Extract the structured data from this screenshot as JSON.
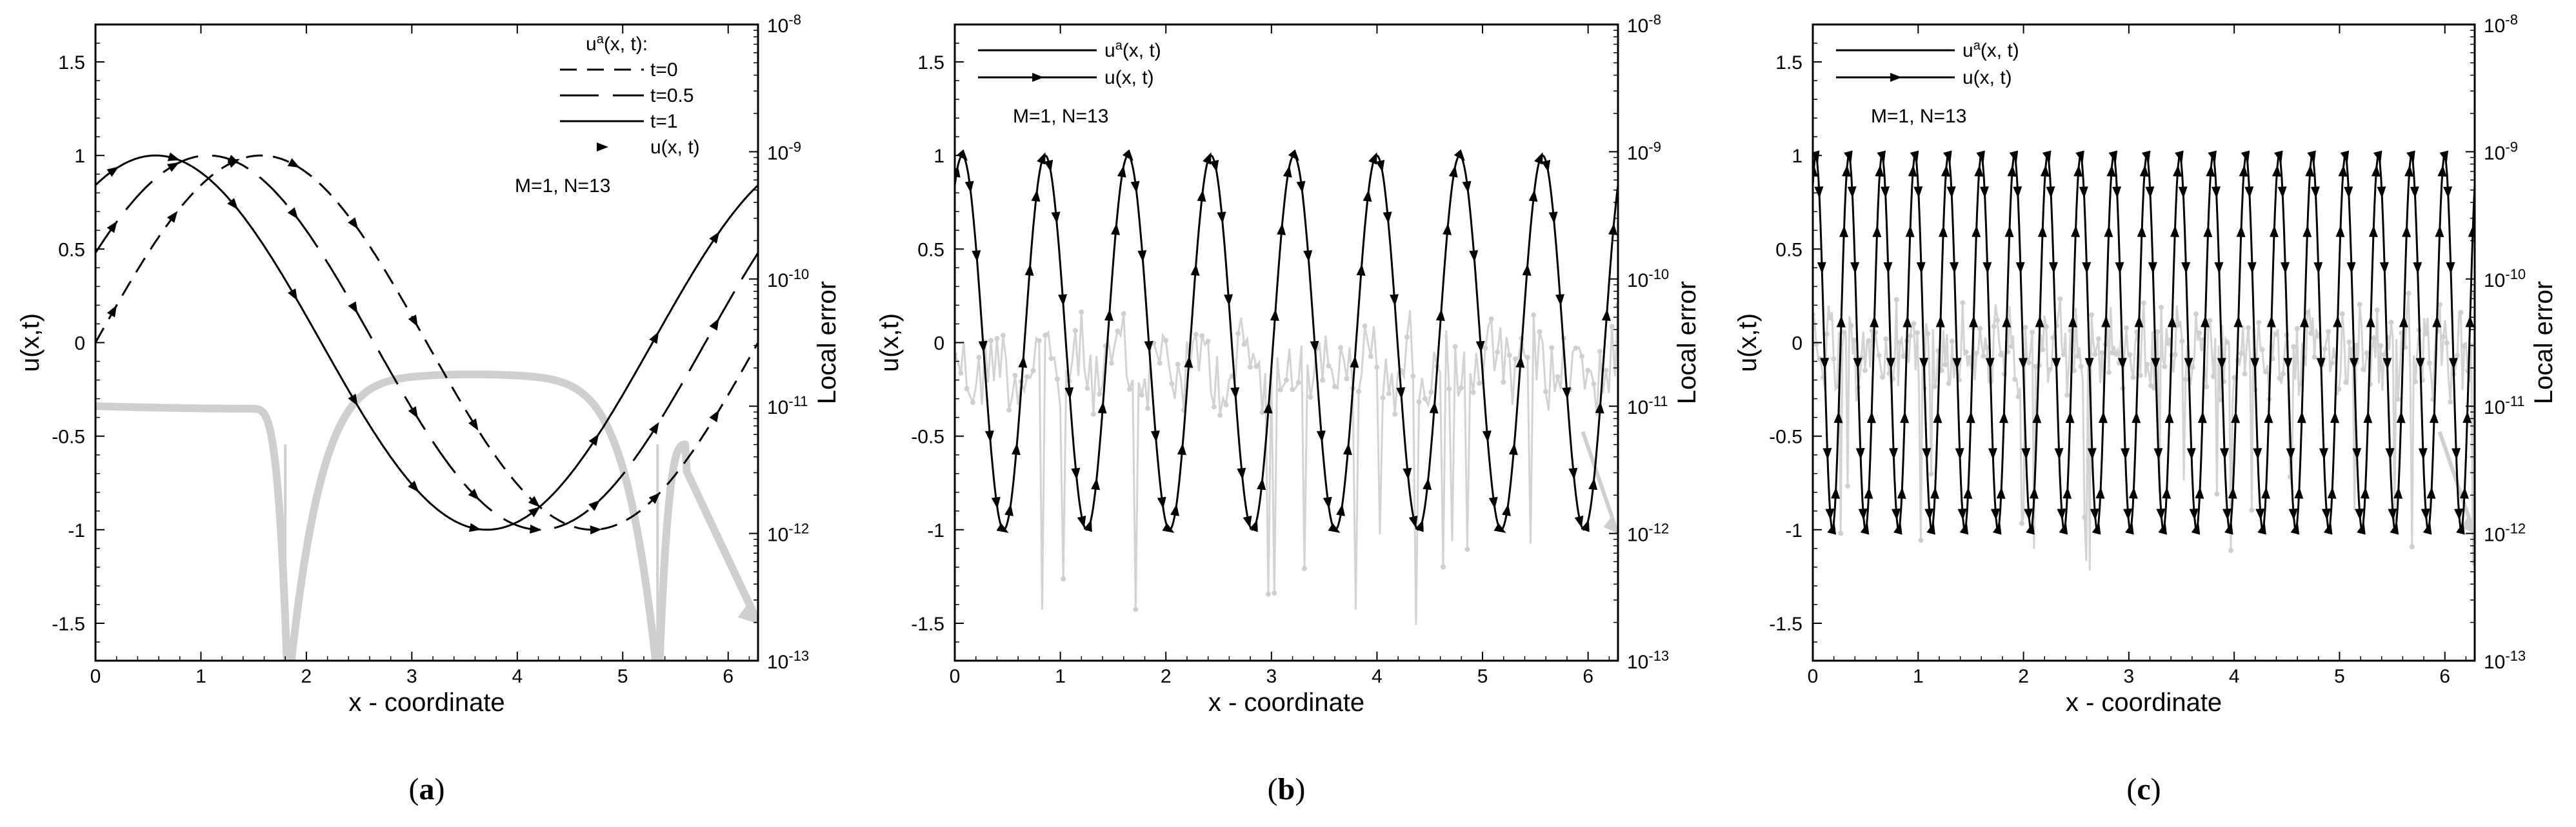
{
  "chart_data": [
    {
      "type": "line",
      "caption": "(a)",
      "xlabel": "x - coordinate",
      "ylabel": "u(x,t)",
      "y2label": "Local error",
      "xlim": [
        0,
        6.2832
      ],
      "ylim": [
        -1.7,
        1.7
      ],
      "x_ticks": [
        0,
        1,
        2,
        3,
        4,
        5,
        6
      ],
      "y_ticks": [
        "1.5",
        "1",
        "0.5",
        "0",
        "-0.5",
        "-1",
        "-1.5"
      ],
      "y2_scale": "log",
      "y2lim": [
        1e-13,
        1e-08
      ],
      "y2_ticks": [
        "10-8",
        "10-9",
        "10-10",
        "10-11",
        "10-12",
        "10-13"
      ],
      "grid": false,
      "legend_position": "top-right",
      "legend_title": "ua(x, t):",
      "legend_entries": [
        "t=0",
        "t=0.5",
        "t=1",
        "u(x, t)"
      ],
      "annotation": "M=1, N=13",
      "wavenumber": 1,
      "series": [
        {
          "name": "t=0",
          "style": "dashed-short",
          "function": "sin(x + 1*t)",
          "t": 0
        },
        {
          "name": "t=0.5",
          "style": "dashed-long",
          "function": "sin(x + 1*t)",
          "t": 0.5
        },
        {
          "name": "t=1",
          "style": "solid",
          "function": "sin(x + 1*t)",
          "t": 1
        },
        {
          "name": "u(x, t)",
          "style": "markers",
          "marker_count": 22
        }
      ],
      "error_series": {
        "axis": "y2",
        "color": "#cccccc",
        "approx_x": [
          0.0,
          1.0,
          1.8,
          2.6,
          3.5,
          4.4,
          5.3,
          6.0,
          6.283
        ],
        "approx_log10_error": [
          -11.0,
          -11.0,
          -13.0,
          -10.85,
          -10.75,
          -10.9,
          -13.0,
          -12.0,
          -12.7
        ]
      }
    },
    {
      "type": "line",
      "caption": "(b)",
      "xlabel": "x - coordinate",
      "ylabel": "u(x,t)",
      "y2label": "Local error",
      "xlim": [
        0,
        6.2832
      ],
      "ylim": [
        -1.7,
        1.7
      ],
      "x_ticks": [
        0,
        1,
        2,
        3,
        4,
        5,
        6
      ],
      "y_ticks": [
        "1.5",
        "1",
        "0.5",
        "0",
        "-0.5",
        "-1",
        "-1.5"
      ],
      "y2_scale": "log",
      "y2lim": [
        1e-13,
        1e-08
      ],
      "y2_ticks": [
        "10-8",
        "10-9",
        "10-10",
        "10-11",
        "10-12",
        "10-13"
      ],
      "grid": false,
      "legend_position": "top-left",
      "legend_entries": [
        "ua(x, t)",
        "u(x, t)"
      ],
      "annotation": "M=1, N=13",
      "wavenumber": 8,
      "series": [
        {
          "name": "ua(x, t)",
          "style": "solid",
          "function": "sin(8x + 1)"
        },
        {
          "name": "u(x, t)",
          "style": "solid-markers",
          "marker_count": 100
        }
      ],
      "error_series": {
        "axis": "y2",
        "color": "#cccccc",
        "approx_log10_error_range": [
          -12.8,
          -10.2
        ]
      }
    },
    {
      "type": "line",
      "caption": "(c)",
      "xlabel": "x - coordinate",
      "ylabel": "u(x,t)",
      "y2label": "Local error",
      "xlim": [
        0,
        6.2832
      ],
      "ylim": [
        -1.7,
        1.7
      ],
      "x_ticks": [
        0,
        1,
        2,
        3,
        4,
        5,
        6
      ],
      "y_ticks": [
        "1.5",
        "1",
        "0.5",
        "0",
        "-0.5",
        "-1",
        "-1.5"
      ],
      "y2_scale": "log",
      "y2lim": [
        1e-13,
        1e-08
      ],
      "y2_ticks": [
        "10-8",
        "10-9",
        "10-10",
        "10-11",
        "10-12",
        "10-13"
      ],
      "grid": false,
      "legend_position": "top-left",
      "legend_entries": [
        "ua(x, t)",
        "u(x, t)"
      ],
      "annotation": "M=1, N=13",
      "wavenumber": 20,
      "series": [
        {
          "name": "ua(x, t)",
          "style": "solid",
          "function": "sin(20x + 1)"
        },
        {
          "name": "u(x, t)",
          "style": "solid-markers",
          "marker_count": 240
        }
      ],
      "error_series": {
        "axis": "y2",
        "color": "#cccccc",
        "approx_log10_error_range": [
          -12.3,
          -10.1
        ]
      }
    }
  ]
}
